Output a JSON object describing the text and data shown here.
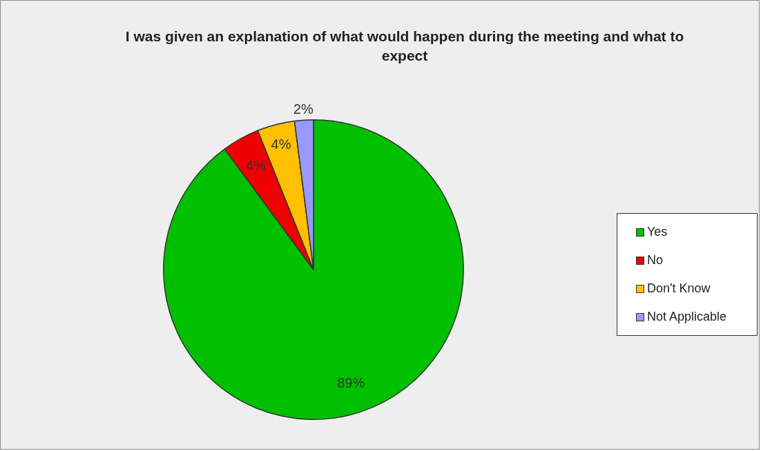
{
  "chart_data": {
    "type": "pie",
    "title": "I was given an explanation of what would happen during the meeting and what to expect",
    "categories": [
      "Yes",
      "No",
      "Don't Know",
      "Not Applicable"
    ],
    "values": [
      89,
      4,
      4,
      2
    ],
    "colors": [
      "#00c000",
      "#ee0000",
      "#ffc000",
      "#9999ff"
    ],
    "value_labels": [
      "89%",
      "4%",
      "4%",
      "2%"
    ],
    "legend": "right"
  }
}
